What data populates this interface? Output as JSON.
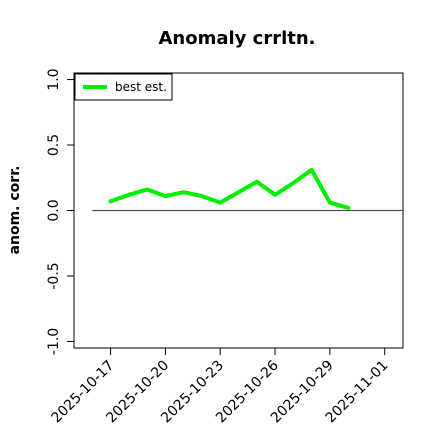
{
  "chart_data": {
    "type": "line",
    "title": "Anomaly crrltn.",
    "xlabel": "",
    "ylabel": "anom. corr.",
    "ylim": [
      -1.05,
      1.05
    ],
    "xlim": [
      "2025-10-15",
      "2025-11-02"
    ],
    "yticks": [
      "-1.0",
      "-0.5",
      "0.0",
      "0.5",
      "1.0"
    ],
    "xticks": [
      "2025-10-17",
      "2025-10-20",
      "2025-10-23",
      "2025-10-26",
      "2025-10-29",
      "2025-11-01"
    ],
    "grid": false,
    "legend_position": "top-left",
    "reference_line": {
      "y": 0,
      "x_start": "2025-10-16",
      "x_end": "2025-11-02",
      "color": "#555555"
    },
    "series": [
      {
        "name": "best est.",
        "color": "#00ee00",
        "x": [
          "2025-10-17",
          "2025-10-18",
          "2025-10-19",
          "2025-10-20",
          "2025-10-21",
          "2025-10-22",
          "2025-10-23",
          "2025-10-24",
          "2025-10-25",
          "2025-10-26",
          "2025-10-27",
          "2025-10-28",
          "2025-10-29",
          "2025-10-30"
        ],
        "y": [
          0.07,
          0.12,
          0.16,
          0.11,
          0.14,
          0.11,
          0.06,
          0.14,
          0.22,
          0.12,
          0.21,
          0.31,
          0.06,
          0.02
        ]
      }
    ]
  }
}
